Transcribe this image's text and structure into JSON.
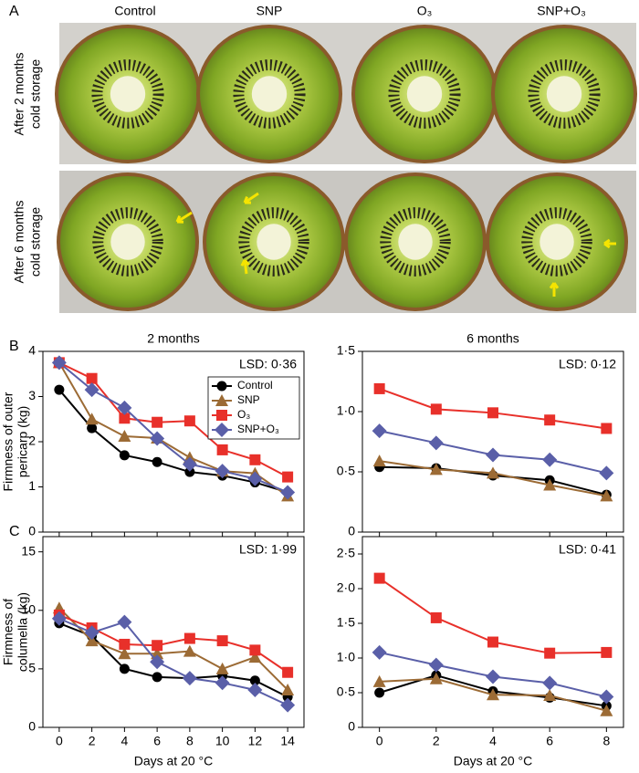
{
  "panel_a": {
    "label": "A",
    "columns": [
      "Control",
      "SNP",
      "O₃",
      "SNP+O₃"
    ],
    "rows": [
      [
        "After 2 months",
        "cold storage"
      ],
      [
        "After 6 months",
        "cold storage"
      ]
    ]
  },
  "chart_data": [
    {
      "type": "line",
      "panel_label": "B",
      "title": "2 months",
      "annotation": "LSD: 0·36",
      "ylabel": [
        "Firmness of outer",
        "pericarp (kg)"
      ],
      "show_xtick_labels": false,
      "legend": "upper right",
      "x": [
        0,
        2,
        4,
        6,
        8,
        10,
        12,
        14
      ],
      "xlim": [
        -1,
        15
      ],
      "xticks": [
        0,
        2,
        4,
        6,
        8,
        10,
        12,
        14
      ],
      "ylim": [
        0,
        4
      ],
      "yticks": [
        0,
        1,
        2,
        3,
        4
      ],
      "series": [
        {
          "name": "Control",
          "color": "#000000",
          "marker": "circle",
          "values": [
            3.15,
            2.3,
            1.7,
            1.55,
            1.33,
            1.25,
            1.1,
            0.88
          ]
        },
        {
          "name": "SNP",
          "color": "#9c6b35",
          "marker": "triangle",
          "values": [
            3.75,
            2.5,
            2.12,
            2.08,
            1.65,
            1.35,
            1.3,
            0.8
          ]
        },
        {
          "name": "O₃",
          "color": "#e8302a",
          "marker": "square",
          "values": [
            3.75,
            3.4,
            2.52,
            2.43,
            2.46,
            1.82,
            1.6,
            1.22
          ]
        },
        {
          "name": "SNP+O₃",
          "color": "#5a5fa8",
          "marker": "diamond",
          "values": [
            3.75,
            3.15,
            2.75,
            2.07,
            1.5,
            1.35,
            1.18,
            0.88
          ]
        }
      ]
    },
    {
      "type": "line",
      "title": "6 months",
      "annotation": "LSD: 0·12",
      "show_xtick_labels": false,
      "x": [
        0,
        2,
        4,
        6,
        8
      ],
      "xlim": [
        -0.6,
        8.6
      ],
      "xticks": [
        0,
        2,
        4,
        6,
        8
      ],
      "ylim": [
        0,
        1.5
      ],
      "yticks": [
        0,
        {
          "value": 0.5,
          "label": "0·5"
        },
        {
          "value": 1.0,
          "label": "1·0"
        },
        {
          "value": 1.5,
          "label": "1·5"
        }
      ],
      "series": [
        {
          "color": "#000000",
          "marker": "circle",
          "values": [
            0.54,
            0.53,
            0.47,
            0.43,
            0.31
          ]
        },
        {
          "color": "#9c6b35",
          "marker": "triangle",
          "values": [
            0.59,
            0.52,
            0.49,
            0.39,
            0.3
          ]
        },
        {
          "color": "#e8302a",
          "marker": "square",
          "values": [
            1.19,
            1.02,
            0.99,
            0.93,
            0.86
          ]
        },
        {
          "color": "#5a5fa8",
          "marker": "diamond",
          "values": [
            0.84,
            0.74,
            0.64,
            0.6,
            0.49
          ]
        }
      ]
    },
    {
      "type": "line",
      "panel_label": "C",
      "annotation": "LSD: 1·99",
      "ylabel": [
        "Firmness of",
        "columella (kg)"
      ],
      "xlabel": "Days at 20 °C",
      "show_xtick_labels": true,
      "x": [
        0,
        2,
        4,
        6,
        8,
        10,
        12,
        14
      ],
      "xlim": [
        -1,
        15
      ],
      "xticks": [
        0,
        2,
        4,
        6,
        8,
        10,
        12,
        14
      ],
      "ylim": [
        0,
        16.3
      ],
      "yticks": [
        0,
        5,
        10,
        15
      ],
      "series": [
        {
          "color": "#000000",
          "marker": "circle",
          "values": [
            8.9,
            7.8,
            5.0,
            4.3,
            4.2,
            4.4,
            4.0,
            2.6
          ]
        },
        {
          "color": "#9c6b35",
          "marker": "triangle",
          "values": [
            10.2,
            7.4,
            6.3,
            6.3,
            6.5,
            5.0,
            6.0,
            3.2
          ]
        },
        {
          "color": "#e8302a",
          "marker": "square",
          "values": [
            9.6,
            8.5,
            7.1,
            7.0,
            7.6,
            7.4,
            6.6,
            4.7
          ]
        },
        {
          "color": "#5a5fa8",
          "marker": "diamond",
          "values": [
            9.3,
            8.1,
            9.0,
            5.6,
            4.2,
            3.8,
            3.2,
            1.9
          ]
        }
      ]
    },
    {
      "type": "line",
      "annotation": "LSD: 0·41",
      "xlabel": "Days at 20 °C",
      "show_xtick_labels": true,
      "x": [
        0,
        2,
        4,
        6,
        8
      ],
      "xlim": [
        -0.6,
        8.6
      ],
      "xticks": [
        0,
        2,
        4,
        6,
        8
      ],
      "ylim": [
        0,
        2.75
      ],
      "yticks": [
        0,
        {
          "value": 0.5,
          "label": "0·5"
        },
        {
          "value": 1.0,
          "label": "1·0"
        },
        {
          "value": 1.5,
          "label": "1·5"
        },
        {
          "value": 2.0,
          "label": "2·0"
        },
        {
          "value": 2.5,
          "label": "2·5"
        }
      ],
      "series": [
        {
          "color": "#000000",
          "marker": "circle",
          "values": [
            0.5,
            0.75,
            0.52,
            0.43,
            0.31
          ]
        },
        {
          "color": "#9c6b35",
          "marker": "triangle",
          "values": [
            0.66,
            0.7,
            0.47,
            0.46,
            0.24
          ]
        },
        {
          "color": "#e8302a",
          "marker": "square",
          "values": [
            2.15,
            1.58,
            1.23,
            1.07,
            1.08
          ]
        },
        {
          "color": "#5a5fa8",
          "marker": "diamond",
          "values": [
            1.08,
            0.9,
            0.73,
            0.64,
            0.44
          ]
        }
      ]
    }
  ]
}
